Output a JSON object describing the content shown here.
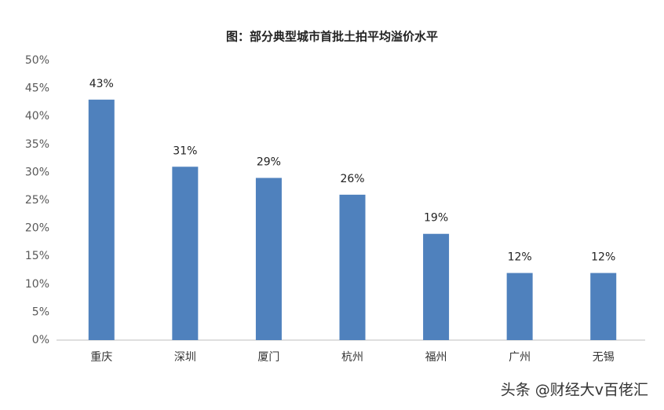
{
  "chart_data": {
    "type": "bar",
    "title": "图：部分典型城市首批土拍平均溢价水平",
    "categories": [
      "重庆",
      "深圳",
      "厦门",
      "杭州",
      "福州",
      "广州",
      "无锡"
    ],
    "values": [
      43,
      31,
      29,
      26,
      19,
      12,
      12
    ],
    "value_labels": [
      "43%",
      "31%",
      "29%",
      "26%",
      "19%",
      "12%",
      "12%"
    ],
    "color": "#4f81bd",
    "ylim": [
      0,
      50
    ],
    "yticks": [
      {
        "value": 0,
        "label": "0%"
      },
      {
        "value": 5,
        "label": "5%"
      },
      {
        "value": 10,
        "label": "10%"
      },
      {
        "value": 15,
        "label": "15%"
      },
      {
        "value": 20,
        "label": "20%"
      },
      {
        "value": 25,
        "label": "25%"
      },
      {
        "value": 30,
        "label": "30%"
      },
      {
        "value": 35,
        "label": "35%"
      },
      {
        "value": 40,
        "label": "40%"
      },
      {
        "value": 45,
        "label": "45%"
      },
      {
        "value": 50,
        "label": "50%"
      }
    ],
    "grid": false
  },
  "watermark": "头条 @财经大v百佬汇"
}
